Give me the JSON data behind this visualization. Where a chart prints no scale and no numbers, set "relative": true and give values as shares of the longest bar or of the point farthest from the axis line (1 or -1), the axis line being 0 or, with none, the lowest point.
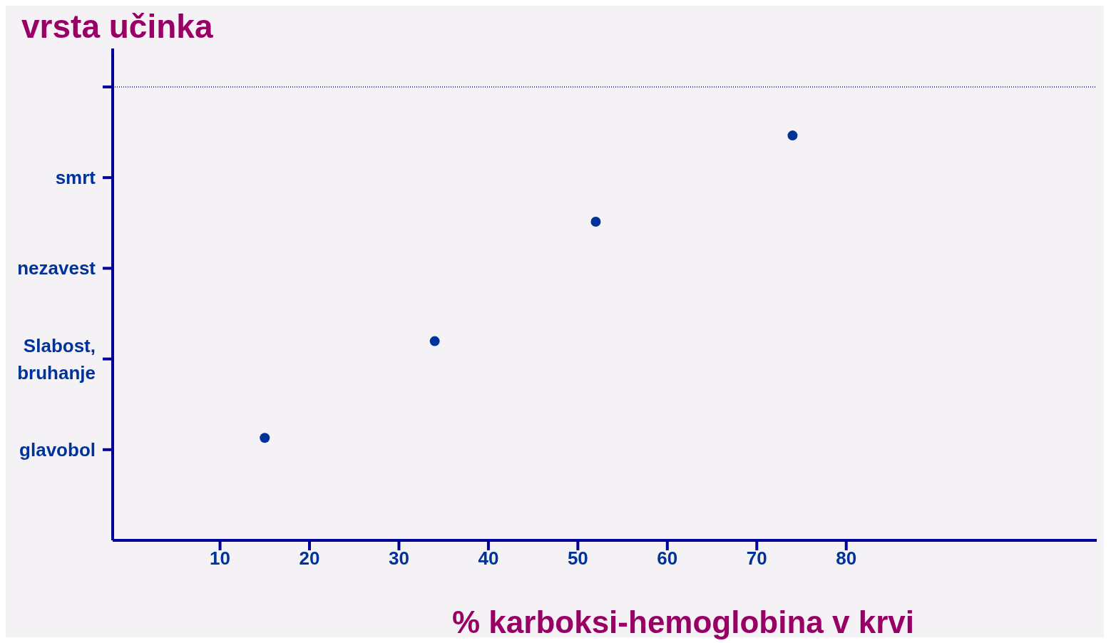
{
  "chart_data": {
    "type": "scatter",
    "xlabel": "% karboksi-hemoglobina v krvi",
    "ylabel": "vrsta učinka",
    "x": [
      15,
      34,
      52,
      74
    ],
    "series": [
      {
        "color": "#003399",
        "values": [
          0.253,
          0.492,
          0.787,
          1
        ]
      }
    ],
    "relative": true,
    "y_categories": [
      null,
      "smrt",
      "nezavest",
      "Slabost,\nbruhanje",
      "glavobol"
    ],
    "xlim": [
      -2,
      108
    ],
    "xticks": [
      10,
      20,
      30,
      40,
      50,
      60,
      70,
      80
    ],
    "ref_lines": [
      {
        "axis": "y",
        "value": 1.12,
        "label": null,
        "color": "#000099",
        "line_style": "dotted"
      }
    ],
    "grid": false,
    "legend": false,
    "marker": "circle"
  }
}
